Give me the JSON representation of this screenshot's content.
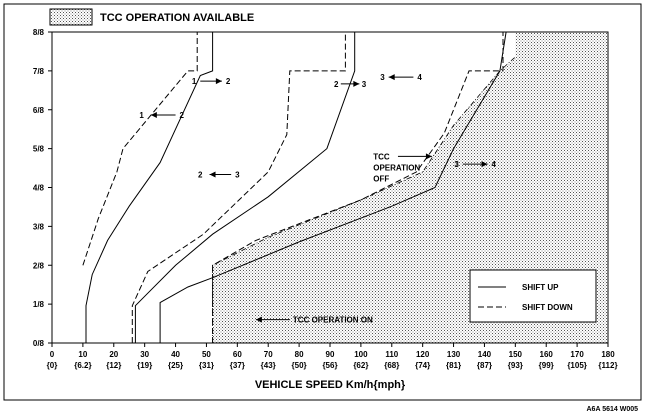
{
  "chart_data": {
    "type": "line",
    "legend_top": {
      "label": "TCC OPERATION AVAILABLE",
      "style": "dotted-fill"
    },
    "legend_box": [
      {
        "label": "SHIFT UP",
        "style": "solid"
      },
      {
        "label": "SHIFT DOWN",
        "style": "dashed"
      }
    ],
    "xlabel": "VEHICLE SPEED  Km/h{mph}",
    "ylabel": "",
    "xlim": [
      0,
      180
    ],
    "ylim": [
      0,
      1
    ],
    "x_ticks": [
      {
        "v": 0,
        "kmh": "0",
        "mph": "{0}"
      },
      {
        "v": 10,
        "kmh": "10",
        "mph": "{6.2}"
      },
      {
        "v": 20,
        "kmh": "20",
        "mph": "{12}"
      },
      {
        "v": 30,
        "kmh": "30",
        "mph": "{19}"
      },
      {
        "v": 40,
        "kmh": "40",
        "mph": "{25}"
      },
      {
        "v": 50,
        "kmh": "50",
        "mph": "{31}"
      },
      {
        "v": 60,
        "kmh": "60",
        "mph": "{37}"
      },
      {
        "v": 70,
        "kmh": "70",
        "mph": "{43}"
      },
      {
        "v": 80,
        "kmh": "80",
        "mph": "{50}"
      },
      {
        "v": 90,
        "kmh": "90",
        "mph": "{56}"
      },
      {
        "v": 100,
        "kmh": "100",
        "mph": "{62}"
      },
      {
        "v": 110,
        "kmh": "110",
        "mph": "{68}"
      },
      {
        "v": 120,
        "kmh": "120",
        "mph": "{74}"
      },
      {
        "v": 130,
        "kmh": "130",
        "mph": "{81}"
      },
      {
        "v": 140,
        "kmh": "140",
        "mph": "{87}"
      },
      {
        "v": 150,
        "kmh": "150",
        "mph": "{93}"
      },
      {
        "v": 160,
        "kmh": "160",
        "mph": "{99}"
      },
      {
        "v": 170,
        "kmh": "170",
        "mph": "{105}"
      },
      {
        "v": 180,
        "kmh": "180",
        "mph": "{112}"
      }
    ],
    "y_ticks": [
      {
        "v": 0,
        "label": "0/8"
      },
      {
        "v": 0.125,
        "label": "1/8"
      },
      {
        "v": 0.25,
        "label": "2/8"
      },
      {
        "v": 0.375,
        "label": "3/8"
      },
      {
        "v": 0.5,
        "label": "4/8"
      },
      {
        "v": 0.625,
        "label": "5/8"
      },
      {
        "v": 0.75,
        "label": "6/8"
      },
      {
        "v": 0.875,
        "label": "7/8"
      },
      {
        "v": 1,
        "label": "8/8"
      }
    ],
    "tcc_region": [
      [
        52,
        0
      ],
      [
        52,
        0.25
      ],
      [
        70,
        0.34
      ],
      [
        100,
        0.46
      ],
      [
        120,
        0.55
      ],
      [
        130,
        0.7
      ],
      [
        145,
        0.875
      ],
      [
        150,
        0.92
      ],
      [
        150,
        1
      ],
      [
        180,
        1
      ],
      [
        180,
        0
      ]
    ],
    "series": [
      {
        "label": "1-2 up",
        "style": "solid",
        "points": [
          [
            11,
            0
          ],
          [
            11,
            0.12
          ],
          [
            13,
            0.22
          ],
          [
            18,
            0.33
          ],
          [
            25,
            0.44
          ],
          [
            35,
            0.58
          ],
          [
            48,
            0.86
          ],
          [
            52,
            0.875
          ],
          [
            52,
            1
          ]
        ]
      },
      {
        "label": "2-1 down",
        "style": "dashed",
        "points": [
          [
            10,
            0.25
          ],
          [
            15,
            0.4
          ],
          [
            21,
            0.55
          ],
          [
            23,
            0.625
          ],
          [
            44,
            0.875
          ],
          [
            47,
            0.875
          ],
          [
            47,
            1
          ]
        ]
      },
      {
        "label": "2-3 up",
        "style": "solid",
        "points": [
          [
            27,
            0
          ],
          [
            27,
            0.12
          ],
          [
            31,
            0.16
          ],
          [
            40,
            0.25
          ],
          [
            52,
            0.35
          ],
          [
            70,
            0.47
          ],
          [
            89,
            0.625
          ],
          [
            98,
            0.875
          ],
          [
            98,
            1
          ]
        ]
      },
      {
        "label": "3-2 down",
        "style": "dashed",
        "points": [
          [
            26,
            0
          ],
          [
            26,
            0.12
          ],
          [
            31,
            0.23
          ],
          [
            34,
            0.25
          ],
          [
            49,
            0.35
          ],
          [
            70,
            0.55
          ],
          [
            76,
            0.67
          ],
          [
            77,
            0.875
          ],
          [
            95,
            0.875
          ],
          [
            95,
            1
          ]
        ]
      },
      {
        "label": "3-4 up",
        "style": "solid",
        "points": [
          [
            35,
            0
          ],
          [
            35,
            0.13
          ],
          [
            44,
            0.18
          ],
          [
            52,
            0.21
          ],
          [
            80,
            0.325
          ],
          [
            110,
            0.44
          ],
          [
            124,
            0.5
          ],
          [
            130,
            0.625
          ],
          [
            145,
            0.875
          ],
          [
            147,
            1
          ]
        ]
      },
      {
        "label": "4-3 down",
        "style": "dashed",
        "points": [
          [
            52,
            0
          ],
          [
            52,
            0.25
          ],
          [
            66,
            0.33
          ],
          [
            100,
            0.46
          ],
          [
            118,
            0.55
          ],
          [
            127,
            0.675
          ],
          [
            135,
            0.875
          ],
          [
            146,
            0.875
          ],
          [
            146,
            1
          ]
        ]
      }
    ],
    "annotations": [
      {
        "label": "1",
        "x": 29,
        "y": 0.733
      },
      {
        "label": "2",
        "x": 42,
        "y": 0.733
      },
      {
        "label": "1",
        "x": 46,
        "y": 0.842
      },
      {
        "label": "2",
        "x": 57,
        "y": 0.842
      },
      {
        "label": "2",
        "x": 48,
        "y": 0.542
      },
      {
        "label": "3",
        "x": 60,
        "y": 0.542
      },
      {
        "label": "2",
        "x": 92,
        "y": 0.833
      },
      {
        "label": "3",
        "x": 101,
        "y": 0.833
      },
      {
        "label": "3",
        "x": 107,
        "y": 0.855
      },
      {
        "label": "4",
        "x": 119,
        "y": 0.855
      },
      {
        "label": "3",
        "x": 131,
        "y": 0.575
      },
      {
        "label": "4",
        "x": 143,
        "y": 0.575
      }
    ],
    "tcc_off_text": [
      "TCC",
      "OPERATION",
      "OFF"
    ],
    "tcc_on_text": "TCC OPERATION ON",
    "code": "A6A 5614 W005"
  }
}
